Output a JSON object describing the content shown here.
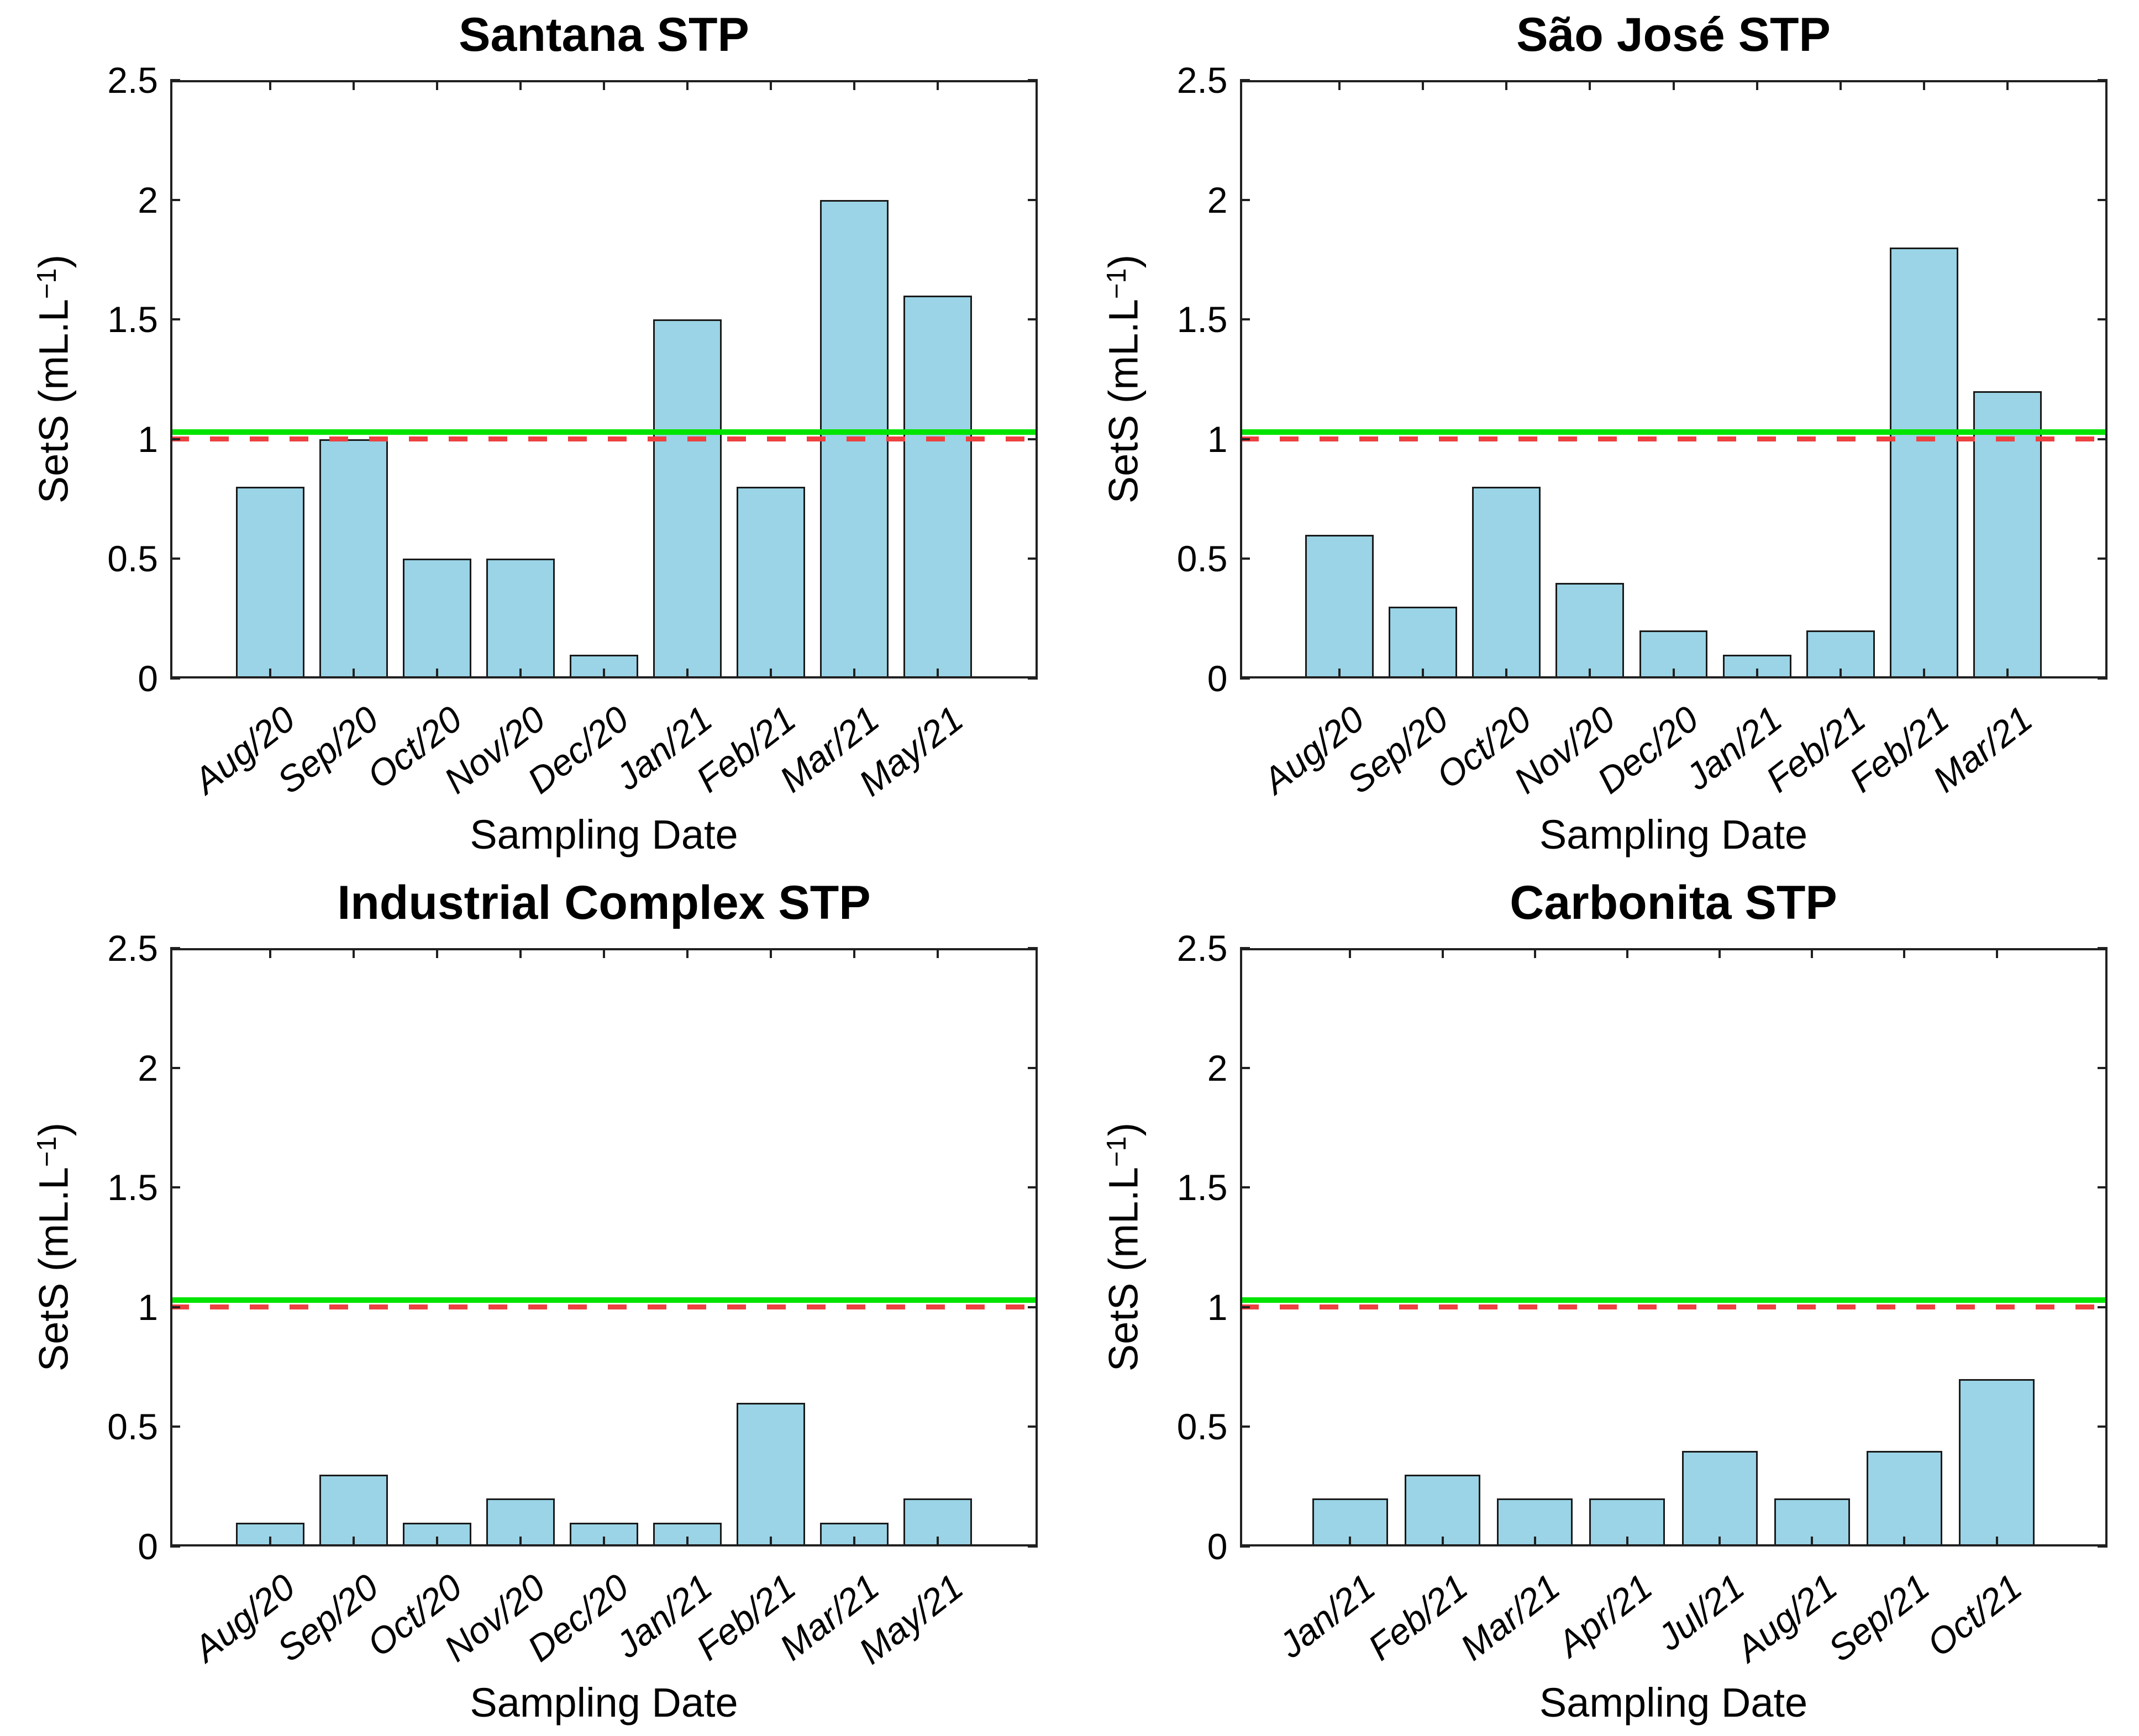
{
  "figure": {
    "xlabel": "Sampling Date",
    "ylabel_pre": "SetS (mL.L",
    "ylabel_sup": "−1",
    "ylabel_post": ")",
    "y_tick_labels": [
      "0",
      "0.5",
      "1",
      "1.5",
      "2",
      "2.5"
    ],
    "colors": {
      "background": "#ffffff",
      "bar_fill": "#9ad4e6",
      "bar_edge": "#1a1a1a",
      "axis": "#202020",
      "text": "#000000",
      "reference_green": "#00e400",
      "reference_red": "#ee4141"
    }
  },
  "chart_data": [
    {
      "type": "bar",
      "title": "Santana STP",
      "xlabel": "Sampling Date",
      "ylabel": "SetS (mL.L−1)",
      "ylim": [
        0,
        2.5
      ],
      "yticks": [
        0,
        0.5,
        1,
        1.5,
        2,
        2.5
      ],
      "grid": false,
      "categories": [
        "Aug/20",
        "Sep/20",
        "Oct/20",
        "Nov/20",
        "Dec/20",
        "Jan/21",
        "Feb/21",
        "Mar/21",
        "May/21"
      ],
      "values": [
        0.8,
        1.0,
        0.5,
        0.5,
        0.1,
        1.5,
        0.8,
        2.0,
        1.6
      ],
      "reference_lines": [
        {
          "value": 1.03,
          "style": "solid",
          "color": "#00e400"
        },
        {
          "value": 1.0,
          "style": "dashed",
          "color": "#ee4141"
        }
      ]
    },
    {
      "type": "bar",
      "title": "São José STP",
      "xlabel": "Sampling Date",
      "ylabel": "SetS (mL.L−1)",
      "ylim": [
        0,
        2.5
      ],
      "yticks": [
        0,
        0.5,
        1,
        1.5,
        2,
        2.5
      ],
      "grid": false,
      "categories": [
        "Aug/20",
        "Sep/20",
        "Oct/20",
        "Nov/20",
        "Dec/20",
        "Jan/21",
        "Feb/21",
        "Feb/21",
        "Mar/21"
      ],
      "values": [
        0.6,
        0.3,
        0.8,
        0.4,
        0.2,
        0.1,
        0.2,
        1.8,
        1.2
      ],
      "reference_lines": [
        {
          "value": 1.03,
          "style": "solid",
          "color": "#00e400"
        },
        {
          "value": 1.0,
          "style": "dashed",
          "color": "#ee4141"
        }
      ]
    },
    {
      "type": "bar",
      "title": "Industrial Complex STP",
      "xlabel": "Sampling Date",
      "ylabel": "SetS (mL.L−1)",
      "ylim": [
        0,
        2.5
      ],
      "yticks": [
        0,
        0.5,
        1,
        1.5,
        2,
        2.5
      ],
      "grid": false,
      "categories": [
        "Aug/20",
        "Sep/20",
        "Oct/20",
        "Nov/20",
        "Dec/20",
        "Jan/21",
        "Feb/21",
        "Mar/21",
        "May/21"
      ],
      "values": [
        0.1,
        0.3,
        0.1,
        0.2,
        0.1,
        0.1,
        0.6,
        0.1,
        0.2
      ],
      "reference_lines": [
        {
          "value": 1.03,
          "style": "solid",
          "color": "#00e400"
        },
        {
          "value": 1.0,
          "style": "dashed",
          "color": "#ee4141"
        }
      ]
    },
    {
      "type": "bar",
      "title": "Carbonita STP",
      "xlabel": "Sampling Date",
      "ylabel": "SetS (mL.L−1)",
      "ylim": [
        0,
        2.5
      ],
      "yticks": [
        0,
        0.5,
        1,
        1.5,
        2,
        2.5
      ],
      "grid": false,
      "categories": [
        "Jan/21",
        "Feb/21",
        "Mar/21",
        "Apr/21",
        "Jul/21",
        "Aug/21",
        "Sep/21",
        "Oct/21"
      ],
      "values": [
        0.2,
        0.3,
        0.2,
        0.2,
        0.4,
        0.2,
        0.4,
        0.7
      ],
      "reference_lines": [
        {
          "value": 1.03,
          "style": "solid",
          "color": "#00e400"
        },
        {
          "value": 1.0,
          "style": "dashed",
          "color": "#ee4141"
        }
      ]
    }
  ]
}
